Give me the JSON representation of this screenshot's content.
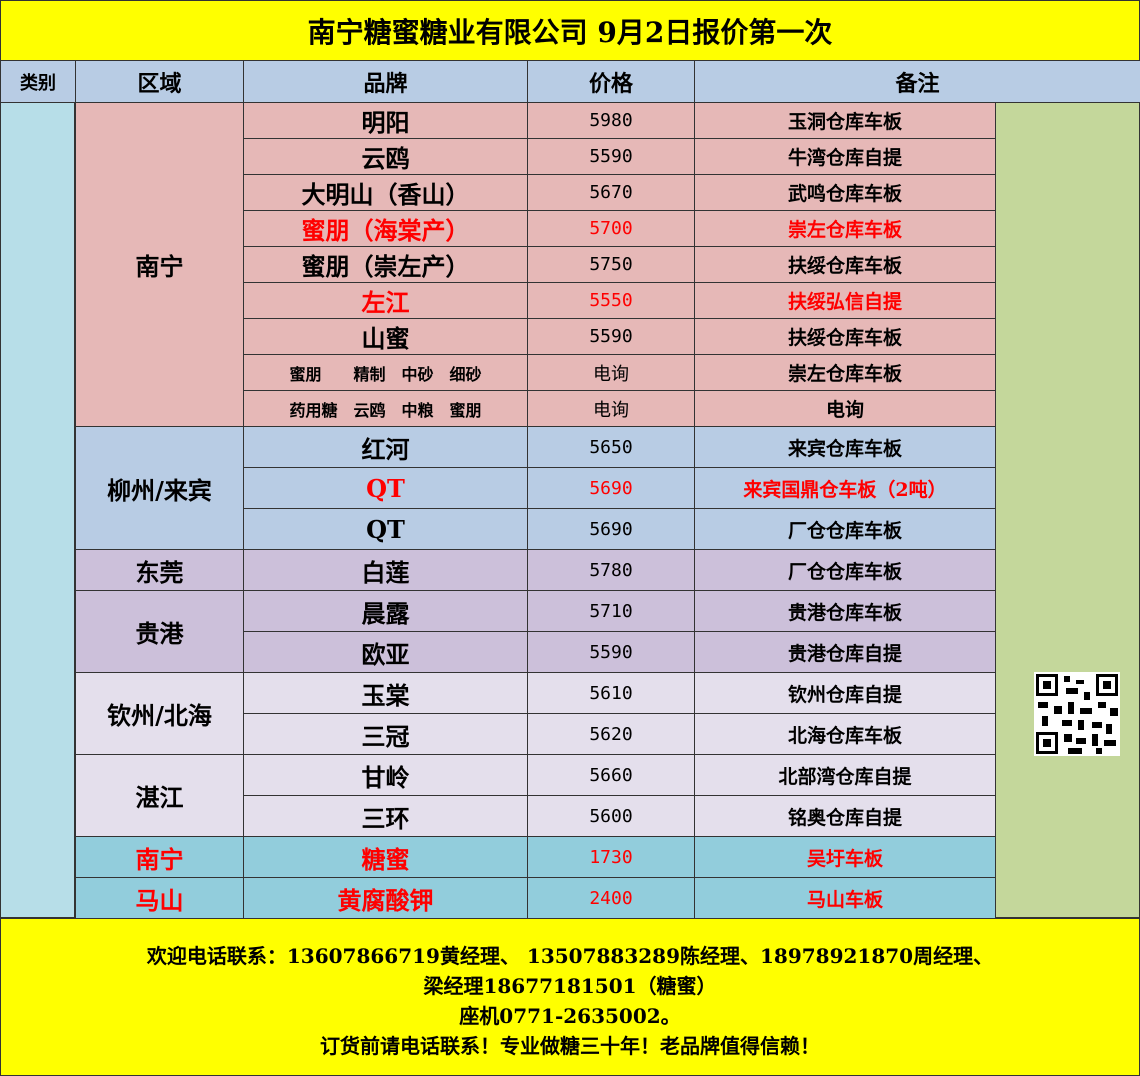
{
  "title": "南宁糖蜜糖业有限公司 9月2日报价第一次",
  "headers": [
    "类别",
    "区域",
    "品牌",
    "价格",
    "备注"
  ],
  "groups": [
    {
      "region": "南宁",
      "background": "#e6b8b7",
      "rows": [
        {
          "brand": "明阳",
          "price": 5980,
          "note": "玉洞仓库车板"
        },
        {
          "brand": "云鸥",
          "price": 5590,
          "note": "牛湾仓库自提"
        },
        {
          "brand": "大明山（香山）",
          "price": 5670,
          "note": "武鸣仓库车板"
        },
        {
          "brand": "蜜朋（海棠产）",
          "price": 5700,
          "note": "崇左仓库车板",
          "color": "#ff0000"
        },
        {
          "brand": "蜜朋（崇左产）",
          "price": 5750,
          "note": "扶绥仓库车板"
        },
        {
          "brand": "左江",
          "price": 5550,
          "note": "扶绥弘信自提",
          "color": "#ff0000"
        },
        {
          "brand": "山蜜",
          "price": 5590,
          "note": "扶绥仓库车板"
        },
        {
          "brand": "蜜朋　　精制　中砂　细砂",
          "price": "电询",
          "note": "崇左仓库车板"
        },
        {
          "brand": "药用糖　云鸥　中粮　蜜朋",
          "price": "电询",
          "note": "电询"
        }
      ]
    },
    {
      "region": "柳州/来宾",
      "background": "#b8cce4",
      "rows": [
        {
          "brand": "红河",
          "price": 5650,
          "note": "来宾仓库车板"
        },
        {
          "brand": "QT",
          "price": 5690,
          "note": "来宾国鼎仓车板（2吨）",
          "color": "#ff0000"
        },
        {
          "brand": "QT",
          "price": 5690,
          "note": "厂仓仓库车板"
        }
      ]
    },
    {
      "region": "东莞",
      "background": "#ccc0da",
      "rows": [
        {
          "brand": "白莲",
          "price": 5780,
          "note": "厂仓仓库车板"
        }
      ]
    },
    {
      "region": "贵港",
      "background": "#ccc0da",
      "rows": [
        {
          "brand": "晨露",
          "price": 5710,
          "note": "贵港仓库车板"
        },
        {
          "brand": "欧亚",
          "price": 5590,
          "note": "贵港仓库自提"
        }
      ]
    },
    {
      "region": "钦州/北海",
      "background": "#e4dfec",
      "rows": [
        {
          "brand": "玉棠",
          "price": 5610,
          "note": "钦州仓库自提"
        },
        {
          "brand": "三冠",
          "price": 5620,
          "note": "北海仓库车板"
        }
      ]
    },
    {
      "region": "湛江",
      "background": "#e4dfec",
      "rows": [
        {
          "brand": "甘岭",
          "price": 5660,
          "note": "北部湾仓库自提"
        },
        {
          "brand": "三环",
          "price": 5600,
          "note": "铭奥仓库自提"
        }
      ]
    },
    {
      "region": "南宁",
      "background": "#92cddc",
      "color": "#ff0000",
      "rows": [
        {
          "brand": "糖蜜",
          "price": 1730,
          "note": "吴圩车板",
          "color": "#ff0000"
        }
      ]
    },
    {
      "region": "马山",
      "background": "#92cddc",
      "color": "#ff0000",
      "rows": [
        {
          "brand": "黄腐酸钾",
          "price": 2400,
          "note": "马山车板",
          "color": "#ff0000"
        }
      ]
    }
  ],
  "footer": [
    "欢迎电话联系：13607866719黄经理、 13507883289陈经理、18978921870周经理、",
    "梁经理18677181501（糖蜜）",
    "座机0771-2635002。",
    "订货前请电话联系！专业做糖三十年！老品牌值得信赖！"
  ]
}
